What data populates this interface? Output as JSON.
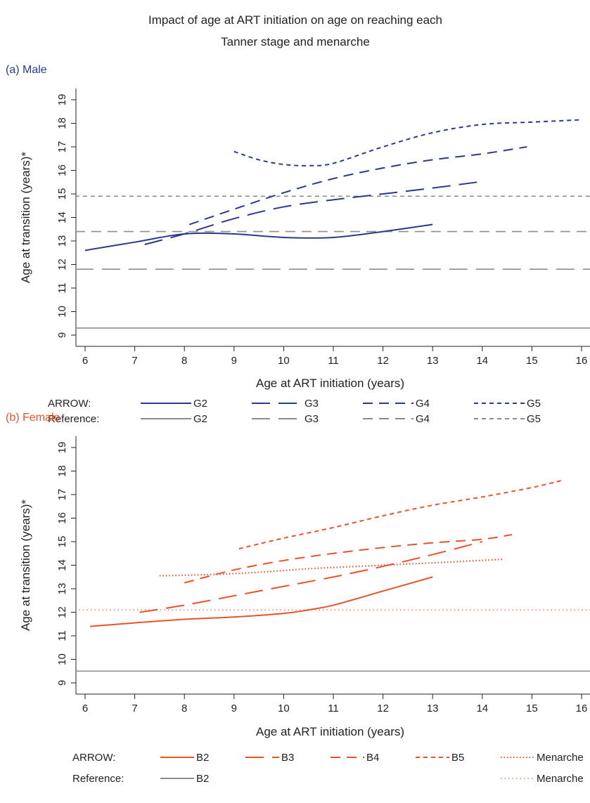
{
  "title_line1": "Impact of age at ART initiation on age on reaching each",
  "title_line2": "Tanner stage and menarche",
  "chart_data": [
    {
      "type": "line",
      "panel_label": "(a) Male",
      "panel_color": "#2b3a8c",
      "xlabel": "Age at ART initiation (years)",
      "ylabel": "Age at transition (years)*",
      "xlim": [
        5.8,
        16.2
      ],
      "ylim": [
        8.6,
        19.4
      ],
      "xticks": [
        "6",
        "7",
        "8",
        "9",
        "10",
        "11",
        "12",
        "13",
        "14",
        "15",
        "16"
      ],
      "yticks": [
        "9",
        "10",
        "11",
        "12",
        "13",
        "14",
        "15",
        "16",
        "17",
        "18",
        "19"
      ],
      "series": [
        {
          "name": "G2",
          "group": "ARROW",
          "color": "#2b3a8c",
          "dash": "solid",
          "points": [
            [
              6.0,
              12.6
            ],
            [
              7.0,
              12.95
            ],
            [
              8.0,
              13.3
            ],
            [
              9.0,
              13.3
            ],
            [
              10.0,
              13.15
            ],
            [
              11.0,
              13.15
            ],
            [
              12.0,
              13.4
            ],
            [
              13.0,
              13.7
            ]
          ]
        },
        {
          "name": "G3",
          "group": "ARROW",
          "color": "#2b3a8c",
          "dash": "longdash",
          "points": [
            [
              7.2,
              12.85
            ],
            [
              8.0,
              13.3
            ],
            [
              9.0,
              13.95
            ],
            [
              10.0,
              14.45
            ],
            [
              11.0,
              14.75
            ],
            [
              12.0,
              15.0
            ],
            [
              13.0,
              15.25
            ],
            [
              13.9,
              15.5
            ]
          ]
        },
        {
          "name": "G4",
          "group": "ARROW",
          "color": "#2b3a8c",
          "dash": "dash",
          "points": [
            [
              8.1,
              13.7
            ],
            [
              9.0,
              14.35
            ],
            [
              10.0,
              15.05
            ],
            [
              11.0,
              15.65
            ],
            [
              12.0,
              16.1
            ],
            [
              13.0,
              16.45
            ],
            [
              14.0,
              16.7
            ],
            [
              14.9,
              17.0
            ]
          ]
        },
        {
          "name": "G5",
          "group": "ARROW",
          "color": "#2b3a8c",
          "dash": "shortdash",
          "points": [
            [
              9.0,
              16.8
            ],
            [
              9.5,
              16.45
            ],
            [
              10.0,
              16.25
            ],
            [
              10.5,
              16.2
            ],
            [
              11.0,
              16.3
            ],
            [
              12.0,
              17.0
            ],
            [
              13.0,
              17.6
            ],
            [
              14.0,
              17.95
            ],
            [
              15.0,
              18.05
            ],
            [
              16.0,
              18.15
            ]
          ]
        },
        {
          "name": "G2",
          "group": "Reference",
          "color": "#8c8c8c",
          "dash": "solid",
          "points": [
            [
              5.8,
              9.3
            ],
            [
              16.2,
              9.3
            ]
          ]
        },
        {
          "name": "G3",
          "group": "Reference",
          "color": "#8c8c8c",
          "dash": "longdash",
          "points": [
            [
              5.8,
              11.8
            ],
            [
              16.2,
              11.8
            ]
          ]
        },
        {
          "name": "G4",
          "group": "Reference",
          "color": "#8c8c8c",
          "dash": "dash",
          "points": [
            [
              5.8,
              13.4
            ],
            [
              16.2,
              13.4
            ]
          ]
        },
        {
          "name": "G5",
          "group": "Reference",
          "color": "#8c8c8c",
          "dash": "shortdash",
          "points": [
            [
              5.8,
              14.9
            ],
            [
              16.2,
              14.9
            ]
          ]
        }
      ],
      "legend_rows": [
        {
          "label": "ARROW:",
          "items": [
            {
              "text": "G2",
              "color": "#2b3a8c",
              "dash": "solid"
            },
            {
              "text": "G3",
              "color": "#2b3a8c",
              "dash": "longdash"
            },
            {
              "text": "G4",
              "color": "#2b3a8c",
              "dash": "dash"
            },
            {
              "text": "G5",
              "color": "#2b3a8c",
              "dash": "shortdash"
            }
          ]
        },
        {
          "label": "Reference:",
          "items": [
            {
              "text": "G2",
              "color": "#8c8c8c",
              "dash": "solid"
            },
            {
              "text": "G3",
              "color": "#8c8c8c",
              "dash": "longdash"
            },
            {
              "text": "G4",
              "color": "#8c8c8c",
              "dash": "dash"
            },
            {
              "text": "G5",
              "color": "#8c8c8c",
              "dash": "shortdash"
            }
          ]
        }
      ]
    },
    {
      "type": "line",
      "panel_label": "(b) Female",
      "panel_color": "#e8532a",
      "xlabel": "Age at ART initiation (years)",
      "ylabel": "Age at transition (years)*",
      "xlim": [
        5.8,
        16.2
      ],
      "ylim": [
        8.6,
        19.4
      ],
      "xticks": [
        "6",
        "7",
        "8",
        "9",
        "10",
        "11",
        "12",
        "13",
        "14",
        "15",
        "16"
      ],
      "yticks": [
        "9",
        "10",
        "11",
        "12",
        "13",
        "14",
        "15",
        "16",
        "17",
        "18",
        "19"
      ],
      "series": [
        {
          "name": "B2",
          "group": "ARROW",
          "color": "#e8532a",
          "dash": "solid",
          "points": [
            [
              6.1,
              11.4
            ],
            [
              7.0,
              11.55
            ],
            [
              8.0,
              11.7
            ],
            [
              9.0,
              11.8
            ],
            [
              10.0,
              11.95
            ],
            [
              10.5,
              12.1
            ],
            [
              11.0,
              12.3
            ],
            [
              12.0,
              12.9
            ],
            [
              13.0,
              13.5
            ]
          ]
        },
        {
          "name": "B3",
          "group": "ARROW",
          "color": "#e8532a",
          "dash": "longdash",
          "points": [
            [
              7.1,
              12.0
            ],
            [
              8.0,
              12.3
            ],
            [
              9.0,
              12.7
            ],
            [
              10.0,
              13.1
            ],
            [
              11.0,
              13.5
            ],
            [
              12.0,
              13.95
            ],
            [
              13.0,
              14.45
            ],
            [
              14.0,
              15.0
            ]
          ]
        },
        {
          "name": "B4",
          "group": "ARROW",
          "color": "#e8532a",
          "dash": "dash",
          "points": [
            [
              8.0,
              13.25
            ],
            [
              9.0,
              13.8
            ],
            [
              10.0,
              14.2
            ],
            [
              11.0,
              14.5
            ],
            [
              12.0,
              14.75
            ],
            [
              13.0,
              14.95
            ],
            [
              14.0,
              15.1
            ],
            [
              14.6,
              15.3
            ]
          ]
        },
        {
          "name": "B5",
          "group": "ARROW",
          "color": "#e8532a",
          "dash": "shortdash",
          "points": [
            [
              9.1,
              14.7
            ],
            [
              10.0,
              15.15
            ],
            [
              11.0,
              15.6
            ],
            [
              12.0,
              16.1
            ],
            [
              13.0,
              16.55
            ],
            [
              14.0,
              16.9
            ],
            [
              15.0,
              17.3
            ],
            [
              15.6,
              17.6
            ]
          ]
        },
        {
          "name": "Menarche",
          "group": "ARROW",
          "color": "#e8532a",
          "dash": "dot",
          "points": [
            [
              7.5,
              13.55
            ],
            [
              8.5,
              13.6
            ],
            [
              9.5,
              13.7
            ],
            [
              10.5,
              13.85
            ],
            [
              11.5,
              13.95
            ],
            [
              12.5,
              14.05
            ],
            [
              13.5,
              14.15
            ],
            [
              14.4,
              14.25
            ]
          ]
        },
        {
          "name": "B2",
          "group": "Reference",
          "color": "#8c8c8c",
          "dash": "solid",
          "points": [
            [
              5.8,
              9.5
            ],
            [
              16.2,
              9.5
            ]
          ]
        },
        {
          "name": "Menarche",
          "group": "Reference",
          "color": "#e8532a",
          "dash": "dotlight",
          "points": [
            [
              5.8,
              12.1
            ],
            [
              16.2,
              12.1
            ]
          ]
        }
      ],
      "legend_rows": [
        {
          "label": "ARROW:",
          "items": [
            {
              "text": "B2",
              "color": "#e8532a",
              "dash": "solid"
            },
            {
              "text": "B3",
              "color": "#e8532a",
              "dash": "longdash"
            },
            {
              "text": "B4",
              "color": "#e8532a",
              "dash": "dash"
            },
            {
              "text": "B5",
              "color": "#e8532a",
              "dash": "shortdash"
            },
            {
              "text": "Menarche",
              "color": "#e8532a",
              "dash": "dot"
            }
          ]
        },
        {
          "label": "Reference:",
          "items": [
            {
              "text": "B2",
              "color": "#8c8c8c",
              "dash": "solid"
            },
            {
              "text": "Menarche",
              "color": "#e8532a",
              "dash": "dotlight"
            }
          ]
        }
      ]
    }
  ]
}
